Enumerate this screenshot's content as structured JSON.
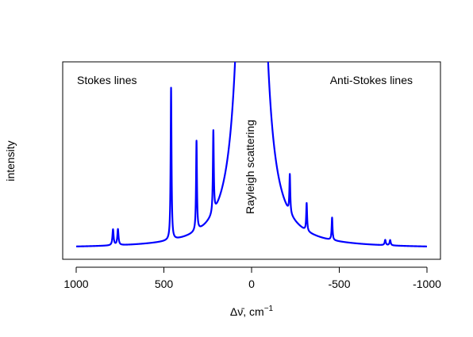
{
  "chart_data": {
    "type": "line",
    "title": "",
    "xlabel_prefix": "Δν̄, cm",
    "xlabel_superscript": "−1",
    "ylabel": "intensity",
    "x_reversed": true,
    "xlim": [
      1000,
      -1000
    ],
    "ylim": [
      0,
      1.2
    ],
    "x_ticks": [
      1000,
      500,
      0,
      -500,
      -1000
    ],
    "x_tick_labels": [
      "1000",
      "500",
      "0",
      "-500",
      "-1000"
    ],
    "y_ticks_shown": false,
    "grid": false,
    "line_color": "#0000ff",
    "annotations": {
      "stokes": "Stokes lines",
      "anti_stokes": "Anti-Stokes lines",
      "rayleigh": "Rayleigh scattering"
    },
    "baseline": 0.03,
    "peaks": [
      {
        "shift": 0,
        "height": 40.0,
        "width": 18
      },
      {
        "shift": 459,
        "height": 1.15,
        "width": 3
      },
      {
        "shift": 314,
        "height": 0.68,
        "width": 3
      },
      {
        "shift": 218,
        "height": 0.62,
        "width": 3
      },
      {
        "shift": 790,
        "height": 0.12,
        "width": 4
      },
      {
        "shift": 762,
        "height": 0.12,
        "width": 4
      },
      {
        "shift": -218,
        "height": 0.29,
        "width": 3
      },
      {
        "shift": -314,
        "height": 0.21,
        "width": 3
      },
      {
        "shift": -459,
        "height": 0.17,
        "width": 3
      },
      {
        "shift": -762,
        "height": 0.04,
        "width": 4
      },
      {
        "shift": -790,
        "height": 0.04,
        "width": 4
      }
    ]
  }
}
